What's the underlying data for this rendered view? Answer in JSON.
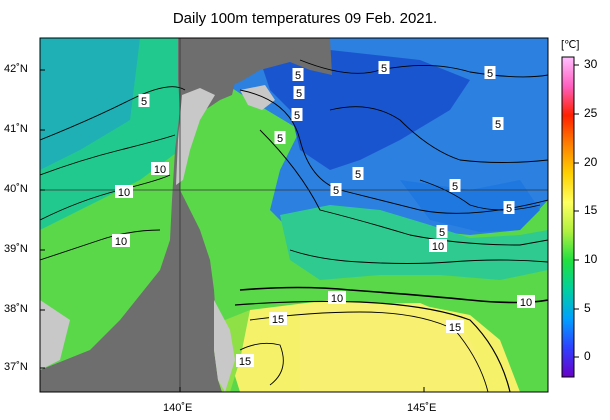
{
  "title": "Daily 100m temperatures 09 Feb. 2021.",
  "colorbar": {
    "unit": "[℃]",
    "ticks": [
      "30",
      "25",
      "20",
      "15",
      "10",
      "5",
      "0"
    ],
    "stops": [
      "#6a00c8",
      "#3040ff",
      "#00a0ff",
      "#00d0a0",
      "#20e040",
      "#b0f040",
      "#ffff60",
      "#ffd000",
      "#ff8000",
      "#ff2000",
      "#ff60c0",
      "#ffc0ff"
    ]
  },
  "lat_labels": [
    "42˚N",
    "41˚N",
    "40˚N",
    "39˚N",
    "38˚N",
    "37˚N"
  ],
  "lon_labels": [
    "140˚E",
    "145˚E"
  ],
  "contour_labels": [
    "5",
    "5",
    "5",
    "5",
    "5",
    "5",
    "5",
    "5",
    "5",
    "5",
    "5",
    "5",
    "5",
    "10",
    "10",
    "10",
    "10",
    "10",
    "10",
    "15",
    "15",
    "15"
  ],
  "colors": {
    "land": "#6e6e6e",
    "shelf": "#c8c8c8",
    "deep_blue": "#1a5fd6",
    "blue": "#2e86e0",
    "cyan": "#1fb8c8",
    "teal": "#20c890",
    "green": "#40d85a",
    "lime": "#7ae040",
    "yellow": "#f7f76a"
  }
}
